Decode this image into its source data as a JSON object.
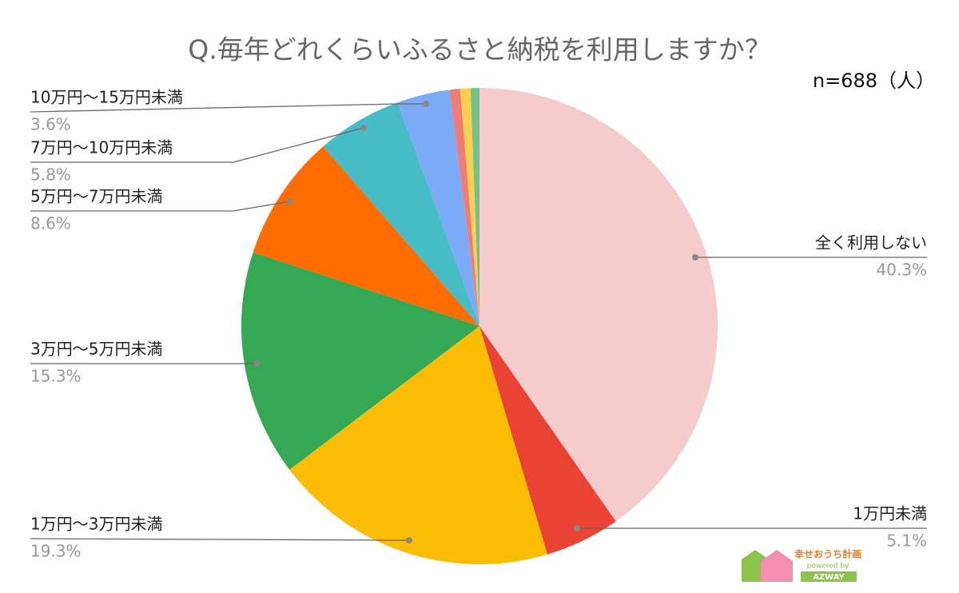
{
  "chart_data": {
    "type": "pie",
    "title": "Q.毎年どれくらいふるさと納税を利用しますか？",
    "subtitle": "n=688（人）",
    "categories": [
      "全く利用しない",
      "1万円未満",
      "1万円〜3万円未満",
      "3万円〜5万円未満",
      "5万円〜7万円未満",
      "7万円〜10万円未満",
      "10万円〜15万円未満",
      null,
      null,
      null
    ],
    "values": [
      40.3,
      5.1,
      19.3,
      15.3,
      8.6,
      5.8,
      3.6,
      0.7,
      0.7,
      0.6
    ],
    "value_labels": [
      "40.3%",
      "5.1%",
      "19.3%",
      "15.3%",
      "8.6%",
      "5.8%",
      "3.6%",
      null,
      null,
      null
    ],
    "colors": [
      "#f4cccc",
      "#ea4335",
      "#fbbc04",
      "#34a853",
      "#ff6d01",
      "#46bdc6",
      "#7baaf7",
      "#f07b72",
      "#fcd04f",
      "#71c287"
    ],
    "logo": {
      "name": "幸せおうち計画",
      "powered": "powered by",
      "brand": "AZWAY"
    }
  }
}
